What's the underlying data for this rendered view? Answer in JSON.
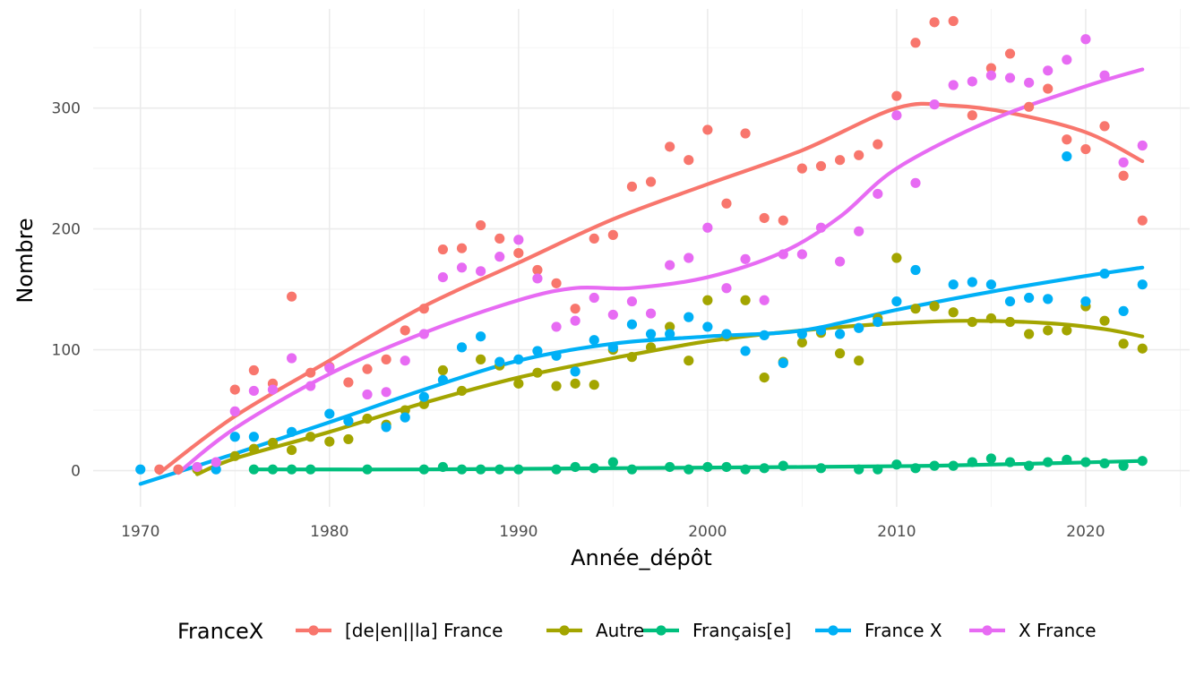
{
  "chart_data": {
    "type": "scatter",
    "xlabel": "Année_dépôt",
    "ylabel": "Nombre",
    "xlim": [
      1967.5,
      1925.5
    ],
    "ylim": [
      -30,
      382
    ],
    "x_ticks": [
      1970,
      1980,
      1990,
      2000,
      2010,
      2020
    ],
    "y_ticks": [
      0,
      100,
      200,
      300
    ],
    "grid": true,
    "legend": {
      "title": "FranceX",
      "position": "bottom"
    },
    "smoothing": "loess",
    "series": [
      {
        "name": "[de|en||la] France",
        "color": "#F8766D",
        "points": [
          [
            1971,
            1
          ],
          [
            1972,
            1
          ],
          [
            1975,
            67
          ],
          [
            1976,
            83
          ],
          [
            1977,
            72
          ],
          [
            1978,
            144
          ],
          [
            1979,
            81
          ],
          [
            1980,
            86
          ],
          [
            1981,
            73
          ],
          [
            1982,
            84
          ],
          [
            1983,
            92
          ],
          [
            1984,
            116
          ],
          [
            1985,
            134
          ],
          [
            1986,
            183
          ],
          [
            1987,
            184
          ],
          [
            1988,
            203
          ],
          [
            1989,
            192
          ],
          [
            1990,
            180
          ],
          [
            1991,
            166
          ],
          [
            1992,
            155
          ],
          [
            1993,
            134
          ],
          [
            1994,
            192
          ],
          [
            1995,
            195
          ],
          [
            1996,
            235
          ],
          [
            1997,
            239
          ],
          [
            1998,
            268
          ],
          [
            1999,
            257
          ],
          [
            2000,
            282
          ],
          [
            2001,
            221
          ],
          [
            2002,
            279
          ],
          [
            2003,
            209
          ],
          [
            2004,
            207
          ],
          [
            2005,
            250
          ],
          [
            2006,
            252
          ],
          [
            2007,
            257
          ],
          [
            2008,
            261
          ],
          [
            2009,
            270
          ],
          [
            2010,
            310
          ],
          [
            2011,
            354
          ],
          [
            2012,
            371
          ],
          [
            2013,
            372
          ],
          [
            2014,
            294
          ],
          [
            2015,
            333
          ],
          [
            2016,
            345
          ],
          [
            2017,
            301
          ],
          [
            2018,
            316
          ],
          [
            2019,
            274
          ],
          [
            2020,
            266
          ],
          [
            2021,
            285
          ],
          [
            2022,
            244
          ],
          [
            2023,
            207
          ]
        ],
        "smooth": [
          [
            1971,
            -2
          ],
          [
            1975,
            45
          ],
          [
            1980,
            91
          ],
          [
            1985,
            136
          ],
          [
            1990,
            172
          ],
          [
            1995,
            208
          ],
          [
            2000,
            237
          ],
          [
            2005,
            265
          ],
          [
            2010,
            300
          ],
          [
            2013,
            302
          ],
          [
            2016,
            296
          ],
          [
            2020,
            280
          ],
          [
            2023,
            256
          ]
        ]
      },
      {
        "name": "Autre",
        "color": "#A3A500",
        "points": [
          [
            1973,
            1
          ],
          [
            1975,
            12
          ],
          [
            1976,
            18
          ],
          [
            1977,
            23
          ],
          [
            1978,
            17
          ],
          [
            1979,
            28
          ],
          [
            1980,
            24
          ],
          [
            1981,
            26
          ],
          [
            1982,
            43
          ],
          [
            1983,
            38
          ],
          [
            1984,
            50
          ],
          [
            1985,
            55
          ],
          [
            1986,
            83
          ],
          [
            1987,
            66
          ],
          [
            1988,
            92
          ],
          [
            1989,
            87
          ],
          [
            1990,
            72
          ],
          [
            1991,
            81
          ],
          [
            1992,
            70
          ],
          [
            1993,
            72
          ],
          [
            1994,
            71
          ],
          [
            1995,
            100
          ],
          [
            1996,
            94
          ],
          [
            1997,
            102
          ],
          [
            1998,
            119
          ],
          [
            1999,
            91
          ],
          [
            2000,
            141
          ],
          [
            2001,
            111
          ],
          [
            2002,
            141
          ],
          [
            2003,
            77
          ],
          [
            2004,
            90
          ],
          [
            2005,
            106
          ],
          [
            2006,
            114
          ],
          [
            2007,
            97
          ],
          [
            2008,
            91
          ],
          [
            2009,
            126
          ],
          [
            2010,
            176
          ],
          [
            2011,
            134
          ],
          [
            2012,
            136
          ],
          [
            2013,
            131
          ],
          [
            2014,
            123
          ],
          [
            2015,
            126
          ],
          [
            2016,
            123
          ],
          [
            2017,
            113
          ],
          [
            2018,
            116
          ],
          [
            2019,
            116
          ],
          [
            2020,
            136
          ],
          [
            2021,
            124
          ],
          [
            2022,
            105
          ],
          [
            2023,
            101
          ]
        ],
        "smooth": [
          [
            1973,
            -3
          ],
          [
            1975,
            10
          ],
          [
            1980,
            32
          ],
          [
            1985,
            56
          ],
          [
            1990,
            77
          ],
          [
            1995,
            93
          ],
          [
            2000,
            107
          ],
          [
            2005,
            116
          ],
          [
            2010,
            122
          ],
          [
            2014,
            124
          ],
          [
            2018,
            122
          ],
          [
            2021,
            117
          ],
          [
            2023,
            111
          ]
        ]
      },
      {
        "name": "Français[e]",
        "color": "#00BF7D",
        "points": [
          [
            1976,
            1
          ],
          [
            1977,
            1
          ],
          [
            1978,
            1
          ],
          [
            1979,
            1
          ],
          [
            1982,
            1
          ],
          [
            1985,
            1
          ],
          [
            1986,
            3
          ],
          [
            1987,
            1
          ],
          [
            1988,
            1
          ],
          [
            1989,
            1
          ],
          [
            1990,
            1
          ],
          [
            1992,
            1
          ],
          [
            1993,
            3
          ],
          [
            1994,
            2
          ],
          [
            1995,
            7
          ],
          [
            1996,
            1
          ],
          [
            1998,
            3
          ],
          [
            1999,
            1
          ],
          [
            2000,
            3
          ],
          [
            2001,
            3
          ],
          [
            2002,
            1
          ],
          [
            2003,
            2
          ],
          [
            2004,
            4
          ],
          [
            2006,
            2
          ],
          [
            2008,
            1
          ],
          [
            2009,
            1
          ],
          [
            2010,
            5
          ],
          [
            2011,
            2
          ],
          [
            2012,
            4
          ],
          [
            2013,
            4
          ],
          [
            2014,
            7
          ],
          [
            2015,
            10
          ],
          [
            2016,
            7
          ],
          [
            2017,
            4
          ],
          [
            2018,
            7
          ],
          [
            2019,
            9
          ],
          [
            2020,
            7
          ],
          [
            2021,
            6
          ],
          [
            2022,
            4
          ],
          [
            2023,
            8
          ]
        ],
        "smooth": [
          [
            1976,
            1
          ],
          [
            1985,
            1
          ],
          [
            1995,
            2
          ],
          [
            2005,
            3
          ],
          [
            2012,
            4
          ],
          [
            2018,
            6
          ],
          [
            2023,
            8
          ]
        ]
      },
      {
        "name": "France X",
        "color": "#00B0F6",
        "points": [
          [
            1970,
            1
          ],
          [
            1974,
            1
          ],
          [
            1975,
            28
          ],
          [
            1976,
            28
          ],
          [
            1978,
            32
          ],
          [
            1980,
            47
          ],
          [
            1981,
            41
          ],
          [
            1983,
            36
          ],
          [
            1984,
            44
          ],
          [
            1985,
            61
          ],
          [
            1986,
            75
          ],
          [
            1987,
            102
          ],
          [
            1988,
            111
          ],
          [
            1989,
            90
          ],
          [
            1990,
            92
          ],
          [
            1991,
            99
          ],
          [
            1992,
            95
          ],
          [
            1993,
            82
          ],
          [
            1994,
            108
          ],
          [
            1995,
            102
          ],
          [
            1996,
            121
          ],
          [
            1997,
            113
          ],
          [
            1998,
            113
          ],
          [
            1999,
            127
          ],
          [
            2000,
            119
          ],
          [
            2001,
            113
          ],
          [
            2002,
            99
          ],
          [
            2003,
            112
          ],
          [
            2004,
            89
          ],
          [
            2005,
            113
          ],
          [
            2006,
            116
          ],
          [
            2007,
            113
          ],
          [
            2008,
            118
          ],
          [
            2009,
            123
          ],
          [
            2010,
            140
          ],
          [
            2011,
            166
          ],
          [
            2013,
            154
          ],
          [
            2014,
            156
          ],
          [
            2015,
            154
          ],
          [
            2016,
            140
          ],
          [
            2017,
            143
          ],
          [
            2018,
            142
          ],
          [
            2019,
            260
          ],
          [
            2020,
            140
          ],
          [
            2021,
            163
          ],
          [
            2022,
            132
          ],
          [
            2023,
            154
          ]
        ],
        "smooth": [
          [
            1970,
            -11
          ],
          [
            1975,
            14
          ],
          [
            1980,
            40
          ],
          [
            1985,
            67
          ],
          [
            1990,
            91
          ],
          [
            1995,
            105
          ],
          [
            2000,
            111
          ],
          [
            2005,
            116
          ],
          [
            2010,
            133
          ],
          [
            2015,
            148
          ],
          [
            2020,
            161
          ],
          [
            2023,
            168
          ]
        ]
      },
      {
        "name": "X France",
        "color": "#E76BF3",
        "points": [
          [
            1973,
            3
          ],
          [
            1974,
            7
          ],
          [
            1975,
            49
          ],
          [
            1976,
            66
          ],
          [
            1977,
            67
          ],
          [
            1978,
            93
          ],
          [
            1979,
            70
          ],
          [
            1980,
            85
          ],
          [
            1982,
            63
          ],
          [
            1983,
            65
          ],
          [
            1984,
            91
          ],
          [
            1985,
            113
          ],
          [
            1986,
            160
          ],
          [
            1987,
            168
          ],
          [
            1988,
            165
          ],
          [
            1989,
            177
          ],
          [
            1990,
            191
          ],
          [
            1991,
            159
          ],
          [
            1992,
            119
          ],
          [
            1993,
            124
          ],
          [
            1994,
            143
          ],
          [
            1995,
            129
          ],
          [
            1996,
            140
          ],
          [
            1997,
            130
          ],
          [
            1998,
            170
          ],
          [
            1999,
            176
          ],
          [
            2000,
            201
          ],
          [
            2001,
            151
          ],
          [
            2002,
            175
          ],
          [
            2003,
            141
          ],
          [
            2004,
            179
          ],
          [
            2005,
            179
          ],
          [
            2006,
            201
          ],
          [
            2007,
            173
          ],
          [
            2008,
            198
          ],
          [
            2009,
            229
          ],
          [
            2010,
            294
          ],
          [
            2011,
            238
          ],
          [
            2012,
            303
          ],
          [
            2013,
            319
          ],
          [
            2014,
            322
          ],
          [
            2015,
            327
          ],
          [
            2016,
            325
          ],
          [
            2017,
            321
          ],
          [
            2018,
            331
          ],
          [
            2019,
            340
          ],
          [
            2020,
            357
          ],
          [
            2021,
            327
          ],
          [
            2022,
            255
          ],
          [
            2023,
            269
          ]
        ],
        "smooth": [
          [
            1972,
            -2
          ],
          [
            1975,
            35
          ],
          [
            1980,
            80
          ],
          [
            1985,
            114
          ],
          [
            1990,
            141
          ],
          [
            1993,
            151
          ],
          [
            1996,
            151
          ],
          [
            2000,
            160
          ],
          [
            2004,
            181
          ],
          [
            2007,
            210
          ],
          [
            2010,
            250
          ],
          [
            2015,
            290
          ],
          [
            2020,
            318
          ],
          [
            2023,
            332
          ]
        ]
      }
    ]
  }
}
